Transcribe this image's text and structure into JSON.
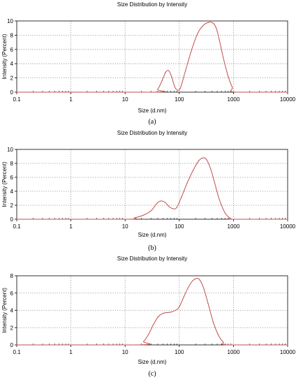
{
  "chart_data": [
    {
      "type": "line",
      "panel_label": "(a)",
      "title": "Size Distribution by Intensity",
      "xlabel": "Size (d.nm)",
      "ylabel": "Intensity (Percent)",
      "xscale": "log",
      "xlim": [
        0.1,
        10000
      ],
      "ylim": [
        0,
        10
      ],
      "xticks": [
        "0.1",
        "1",
        "10",
        "100",
        "1000",
        "10000"
      ],
      "yticks": [
        "0",
        "2",
        "4",
        "6",
        "8",
        "10"
      ],
      "grid": true,
      "series": [
        {
          "color": "#c0504d",
          "x": [
            0.1,
            33,
            40,
            48,
            56,
            64,
            72,
            82,
            92,
            105,
            130,
            170,
            220,
            280,
            350,
            420,
            480,
            550,
            650,
            800,
            950,
            1100,
            10000
          ],
          "y": [
            0,
            0,
            0.4,
            1.6,
            2.8,
            3.0,
            2.2,
            0.8,
            0.3,
            0.6,
            3.0,
            6.0,
            8.3,
            9.4,
            9.8,
            9.7,
            9.0,
            7.3,
            4.8,
            2.2,
            0.7,
            0,
            0
          ]
        }
      ]
    },
    {
      "type": "line",
      "panel_label": "(b)",
      "title": "Size Distribution by Intensity",
      "xlabel": "Size (d.nm)",
      "ylabel": "Intensity (Percent)",
      "xscale": "log",
      "xlim": [
        0.1,
        10000
      ],
      "ylim": [
        0,
        10
      ],
      "xticks": [
        "0.1",
        "1",
        "10",
        "100",
        "1000",
        "10000"
      ],
      "yticks": [
        "0",
        "2",
        "4",
        "6",
        "8",
        "10"
      ],
      "grid": true,
      "series": [
        {
          "color": "#c0504d",
          "x": [
            0.1,
            10,
            15,
            22,
            30,
            38,
            45,
            55,
            65,
            78,
            90,
            110,
            140,
            180,
            230,
            280,
            320,
            380,
            450,
            550,
            700,
            850,
            1000,
            10000
          ],
          "y": [
            0,
            0,
            0.2,
            0.6,
            1.2,
            2.2,
            2.6,
            2.4,
            1.8,
            1.5,
            1.7,
            3.2,
            5.2,
            7.0,
            8.4,
            8.8,
            8.5,
            7.2,
            5.2,
            2.8,
            0.9,
            0.2,
            0,
            0
          ]
        }
      ]
    },
    {
      "type": "line",
      "panel_label": "(c)",
      "title": "Size Distribution by Intensity",
      "xlabel": "Size (d.nm)",
      "ylabel": "Intensity (Percent)",
      "xscale": "log",
      "xlim": [
        0.1,
        10000
      ],
      "ylim": [
        0,
        8
      ],
      "xticks": [
        "0.1",
        "1",
        "10",
        "100",
        "1000",
        "10000"
      ],
      "yticks": [
        "0",
        "2",
        "4",
        "6",
        "8"
      ],
      "grid": true,
      "series": [
        {
          "color": "#c0504d",
          "x": [
            0.1,
            18,
            22,
            27,
            33,
            40,
            48,
            58,
            70,
            85,
            100,
            120,
            145,
            175,
            210,
            240,
            280,
            340,
            420,
            520,
            650,
            800,
            10000
          ],
          "y": [
            0,
            0,
            0.4,
            1.2,
            2.3,
            3.2,
            3.6,
            3.75,
            3.8,
            4.0,
            4.4,
            5.5,
            6.6,
            7.4,
            7.7,
            7.5,
            6.6,
            4.8,
            2.7,
            1.2,
            0.3,
            0,
            0
          ]
        }
      ]
    }
  ]
}
